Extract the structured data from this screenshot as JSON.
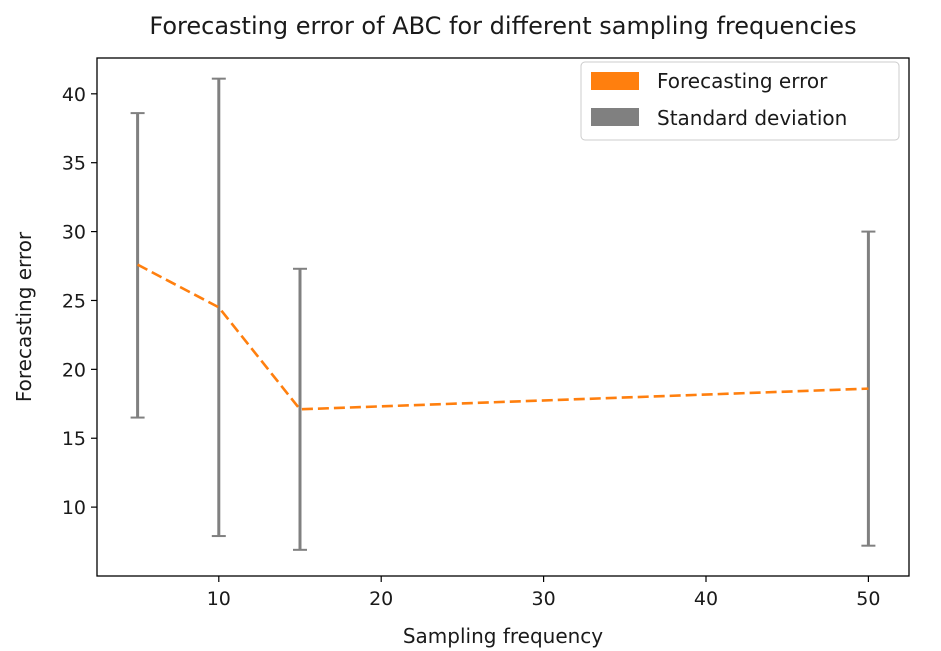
{
  "chart_data": {
    "type": "line",
    "title": "Forecasting error of ABC for different sampling frequencies",
    "xlabel": "Sampling frequency",
    "ylabel": "Forecasting error",
    "xlim": [
      2.5,
      52.5
    ],
    "ylim": [
      5.0,
      42.6
    ],
    "xticks": [
      10,
      20,
      30,
      40,
      50
    ],
    "yticks": [
      10,
      15,
      20,
      25,
      30,
      35,
      40
    ],
    "grid": false,
    "legend_position": "top-right",
    "x": [
      5,
      10,
      15,
      50
    ],
    "series": [
      {
        "name": "Forecasting error",
        "kind": "line",
        "style": "dashed",
        "color": "#ff7f0e",
        "values": [
          27.6,
          24.5,
          17.1,
          18.6
        ]
      },
      {
        "name": "Standard deviation",
        "kind": "errorbar",
        "color": "#808080",
        "lower": [
          16.5,
          7.9,
          6.9,
          7.2
        ],
        "upper": [
          38.6,
          41.1,
          27.3,
          30.0
        ]
      }
    ]
  }
}
